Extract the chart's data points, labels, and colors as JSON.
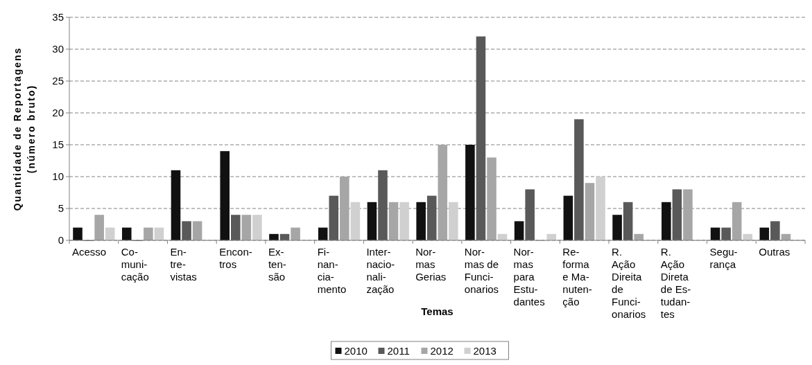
{
  "chart_data": {
    "type": "bar",
    "xlabel": "Temas",
    "ylabel": "Quantidade de Reportagens\n(número bruto)",
    "categories": [
      "Acesso",
      "Co-\nmuni-\ncação",
      "En-\ntre-\nvistas",
      "Encon-\ntros",
      "Ex-\nten-\nsão",
      "Fi-\nnan-\ncia-\nmento",
      "Inter-\nnacio-\nnali-\nzação",
      "Nor-\nmas\nGerias",
      "Nor-\nmas de\nFunci-\nonarios",
      "Nor-\nmas\npara\nEstu-\ndantes",
      "Re-\nforma\ne Ma-\nnuten-\nção",
      "R.\nAção\nDireita\nde\nFunci-\nonarios",
      "R.\nAção\nDireta\nde Es-\ntudan-\ntes",
      "Segu-\nrança",
      "Outras"
    ],
    "series": [
      {
        "name": "2010",
        "color": "#111111",
        "values": [
          2,
          2,
          11,
          14,
          1,
          2,
          6,
          6,
          15,
          3,
          7,
          4,
          6,
          2,
          2
        ]
      },
      {
        "name": "2011",
        "color": "#595959",
        "values": [
          0,
          0,
          3,
          4,
          1,
          7,
          11,
          7,
          32,
          8,
          19,
          6,
          8,
          2,
          3
        ]
      },
      {
        "name": "2012",
        "color": "#a6a6a6",
        "values": [
          4,
          2,
          3,
          4,
          2,
          10,
          6,
          15,
          13,
          0,
          9,
          1,
          8,
          6,
          1
        ]
      },
      {
        "name": "2013",
        "color": "#d0d0d0",
        "values": [
          2,
          2,
          0,
          4,
          0,
          6,
          6,
          6,
          1,
          1,
          10,
          0,
          0,
          1,
          0
        ]
      }
    ],
    "ylim": [
      0,
      35
    ],
    "yticks": [
      0,
      5,
      10,
      15,
      20,
      25,
      30,
      35
    ],
    "grid": "y",
    "legend": "bottom"
  }
}
